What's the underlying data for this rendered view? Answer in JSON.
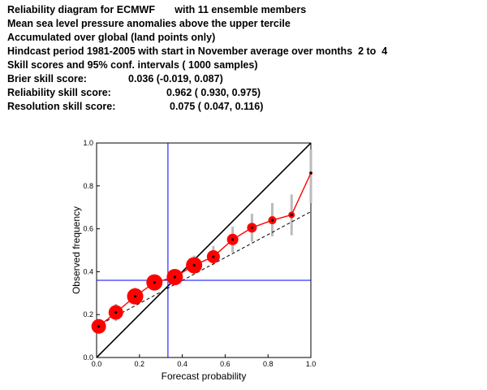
{
  "header": {
    "title_line": "Reliability diagram for ECMWF       with 11 ensemble members",
    "variable_line": "Mean sea level pressure anomalies above the upper tercile",
    "region_line": "Accumulated over global (land points only)",
    "hindcast_line": "Hindcast period 1981-2005 with start in November average over months  2 to  4",
    "ci_line": "Skill scores and 95% conf. intervals ( 1000 samples)",
    "scores": [
      {
        "label": "Brier skill score:",
        "value": "0.036 (-0.019, 0.087)"
      },
      {
        "label": "Reliability skill score:",
        "value": "0.962 ( 0.930, 0.975)"
      },
      {
        "label": "Resolution skill score:",
        "value": "0.075 ( 0.047, 0.116)"
      }
    ]
  },
  "chart_data": {
    "type": "scatter",
    "xlabel": "Forecast probability",
    "ylabel": "Observed frequency",
    "xlim": [
      0,
      1
    ],
    "ylim": [
      0,
      1
    ],
    "xticks": [
      "0.0",
      "0.2",
      "0.4",
      "0.6",
      "0.8",
      "1.0"
    ],
    "yticks": [
      "0.0",
      "0.2",
      "0.4",
      "0.6",
      "0.8",
      "1.0"
    ],
    "climatology": 0.36,
    "forecast_climatology": 0.333,
    "reliability_fit": {
      "x": [
        0.0,
        1.0
      ],
      "y": [
        0.145,
        0.68
      ]
    },
    "series": [
      {
        "x": [
          0.01,
          0.09,
          0.18,
          0.27,
          0.365,
          0.455,
          0.545,
          0.635,
          0.725,
          0.82,
          0.91,
          1.0
        ],
        "y": [
          0.145,
          0.21,
          0.285,
          0.35,
          0.375,
          0.43,
          0.47,
          0.55,
          0.605,
          0.64,
          0.665,
          0.86
        ],
        "ci_low": [
          0.115,
          0.17,
          0.25,
          0.32,
          0.34,
          0.39,
          0.43,
          0.49,
          0.54,
          0.565,
          0.57,
          0.72
        ],
        "ci_high": [
          0.18,
          0.25,
          0.325,
          0.385,
          0.41,
          0.475,
          0.52,
          0.61,
          0.67,
          0.72,
          0.76,
          0.97
        ],
        "point_size": [
          9,
          9,
          10,
          10,
          10,
          10,
          8,
          7,
          6,
          5,
          4,
          2
        ]
      }
    ],
    "colors": {
      "curve": "#ff0000",
      "points": "#ff0000",
      "center_dot": "#000000",
      "ci_bars": "#bbbbbb",
      "climatology_lines": "#0000ff",
      "diagonal": "#000000",
      "fit": "#000000",
      "frame": "#000000"
    },
    "grid": false
  }
}
